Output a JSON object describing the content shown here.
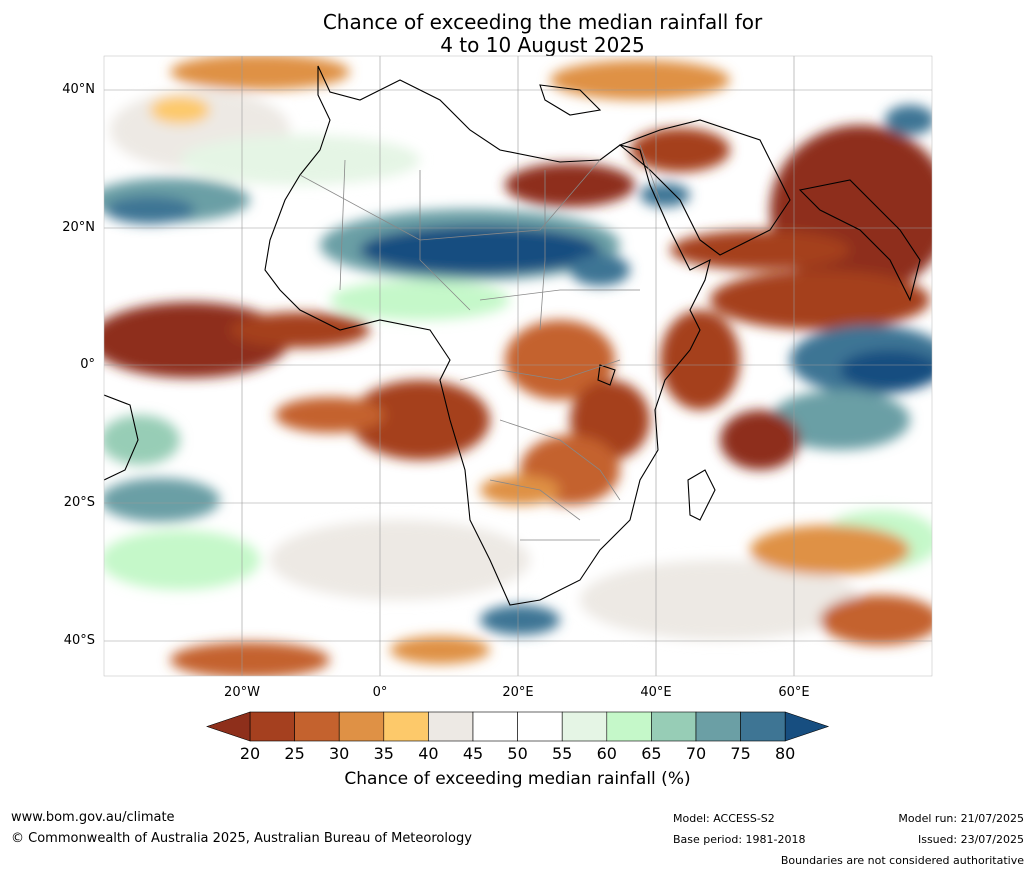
{
  "title": {
    "line1": "Chance of exceeding the median rainfall for",
    "line2": "4 to 10 August 2025"
  },
  "axes": {
    "lat_labels": [
      "40°N",
      "20°N",
      "0°",
      "20°S",
      "40°S"
    ],
    "lon_labels": [
      "20°W",
      "0°",
      "20°E",
      "40°E",
      "60°E"
    ]
  },
  "colorbar": {
    "label": "Chance of exceeding median rainfall (%)",
    "ticks": [
      "20",
      "25",
      "30",
      "35",
      "40",
      "45",
      "50",
      "55",
      "60",
      "65",
      "70",
      "75",
      "80"
    ],
    "colors": [
      "#8e2f1b",
      "#a5401f",
      "#c4622e",
      "#df9145",
      "#fdc96a",
      "#ede9e4",
      "#ffffff",
      "#ffffff",
      "#e5f5e5",
      "#c5f8c9",
      "#97cdb6",
      "#6b9fa5",
      "#3e7594",
      "#174e80"
    ],
    "under_color": "#8e2f1b",
    "over_color": "#174e80"
  },
  "footer": {
    "website": "www.bom.gov.au/climate",
    "copyright": "© Commonwealth of Australia 2025, Australian Bureau of Meteorology",
    "model": "Model: ACCESS-S2",
    "base_period": "Base period: 1981-2018",
    "model_run": "Model run: 21/07/2025",
    "issued": "Issued: 23/07/2025",
    "disclaimer": "Boundaries are not considered authoritative"
  }
}
